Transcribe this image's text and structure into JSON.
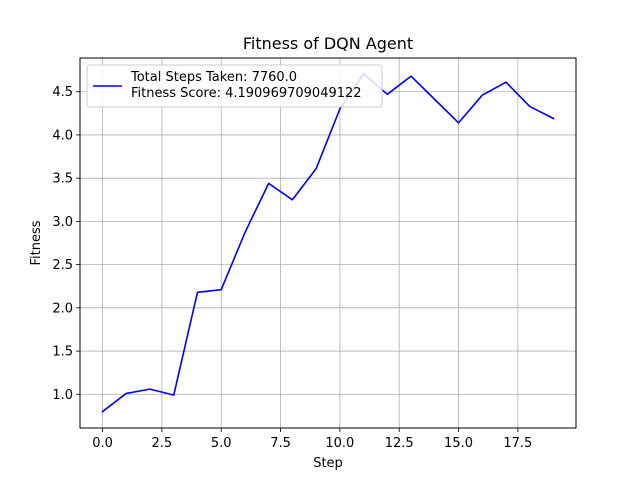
{
  "chart_data": {
    "type": "line",
    "title": "Fitness of DQN Agent",
    "xlabel": "Step",
    "ylabel": "Fitness",
    "xlim": [
      -0.95,
      19.95
    ],
    "ylim": [
      0.61,
      4.89
    ],
    "xticks": [
      0.0,
      2.5,
      5.0,
      7.5,
      10.0,
      12.5,
      15.0,
      17.5
    ],
    "xtick_labels": [
      "0.0",
      "2.5",
      "5.0",
      "7.5",
      "10.0",
      "12.5",
      "15.0",
      "17.5"
    ],
    "yticks": [
      1.0,
      1.5,
      2.0,
      2.5,
      3.0,
      3.5,
      4.0,
      4.5
    ],
    "ytick_labels": [
      "1.0",
      "1.5",
      "2.0",
      "2.5",
      "3.0",
      "3.5",
      "4.0",
      "4.5"
    ],
    "grid": true,
    "legend_position": "top-left",
    "legend_entries": [
      "Total Steps Taken: 7760.0",
      "Fitness Score: 4.190969709049122"
    ],
    "series": [
      {
        "color": "#0000ff",
        "x": [
          0,
          1,
          2,
          3,
          4,
          5,
          6,
          7,
          8,
          9,
          10,
          11,
          12,
          13,
          14,
          15,
          16,
          17,
          18,
          19
        ],
        "y": [
          0.8,
          1.01,
          1.06,
          0.99,
          2.18,
          2.21,
          2.87,
          3.44,
          3.25,
          3.61,
          4.3,
          4.71,
          4.47,
          4.68,
          4.41,
          4.14,
          4.46,
          4.61,
          4.33,
          4.19
        ]
      }
    ]
  }
}
